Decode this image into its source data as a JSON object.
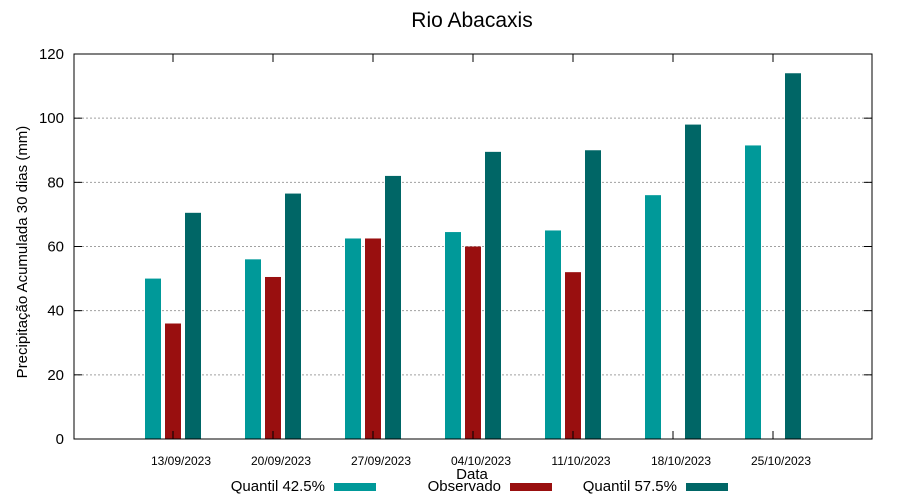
{
  "chart_data": {
    "type": "bar",
    "title": "Rio Abacaxis",
    "xlabel": "Data",
    "ylabel": "Precipitação Acumulada 30 dias (mm)",
    "ylim": [
      0,
      120
    ],
    "yticks": [
      0,
      20,
      40,
      60,
      80,
      100,
      120
    ],
    "grid": true,
    "legend_position": "bottom",
    "categories": [
      "13/09/2023",
      "20/09/2023",
      "27/09/2023",
      "04/10/2023",
      "11/10/2023",
      "18/10/2023",
      "25/10/2023"
    ],
    "series": [
      {
        "name": "Quantil 42.5%",
        "color": "#009999",
        "values": [
          50,
          56,
          62.5,
          64.5,
          65,
          76,
          91.5
        ]
      },
      {
        "name": "Observado",
        "color": "#990f0f",
        "values": [
          36,
          50.5,
          62.5,
          60,
          52,
          null,
          null
        ]
      },
      {
        "name": "Quantil 57.5%",
        "color": "#006666",
        "values": [
          70.5,
          76.5,
          82,
          89.5,
          90,
          98,
          114
        ]
      }
    ]
  }
}
